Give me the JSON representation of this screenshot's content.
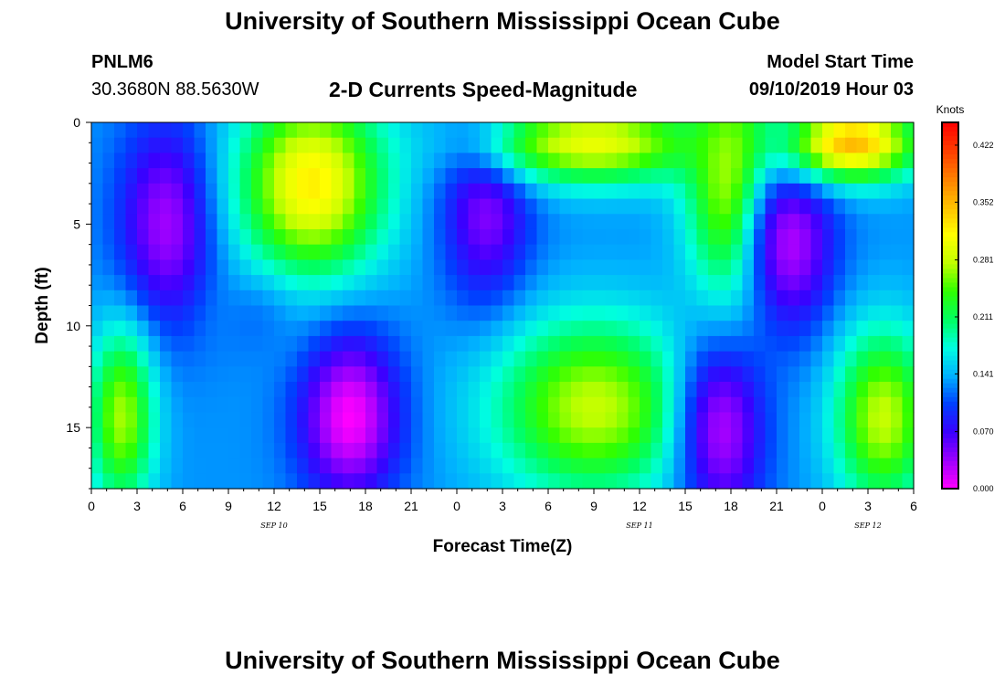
{
  "header": {
    "title": "University of Southern Mississippi Ocean Cube",
    "station_id": "PNLM6",
    "coords": "30.3680N 88.5630W",
    "subtitle": "2-D Currents Speed-Magnitude",
    "model_label": "Model Start Time",
    "model_time": "09/10/2019 Hour 03"
  },
  "footer": {
    "title": "University of Southern Mississippi Ocean Cube"
  },
  "chart_data": {
    "type": "heatmap",
    "title": "2-D Currents Speed-Magnitude",
    "xlabel": "Forecast Time(Z)",
    "ylabel": "Depth (ft)",
    "x_hours": [
      0,
      3,
      6,
      9,
      12,
      15,
      18,
      21,
      24,
      27,
      30,
      33,
      36,
      39,
      42,
      45,
      48,
      51,
      54
    ],
    "x_tick_labels": [
      "0",
      "3",
      "6",
      "9",
      "12",
      "15",
      "18",
      "21",
      "0",
      "3",
      "6",
      "9",
      "12",
      "15",
      "18",
      "21",
      "0",
      "3",
      "6"
    ],
    "date_labels": [
      {
        "text": "SEP 10",
        "hour": 12
      },
      {
        "text": "SEP 11",
        "hour": 36
      },
      {
        "text": "SEP 12",
        "hour": 51
      }
    ],
    "y_ticks": [
      0,
      5,
      10,
      15
    ],
    "ylim": [
      0,
      18
    ],
    "colorbar": {
      "label": "Knots",
      "ticks": [
        "0.000",
        "0.070",
        "0.141",
        "0.211",
        "0.281",
        "0.352",
        "0.422"
      ],
      "range": [
        0,
        0.45
      ]
    },
    "colormap": [
      "#ff00ff",
      "#9c00ff",
      "#3a00ff",
      "#0040ff",
      "#00b0ff",
      "#00ffe0",
      "#00ff60",
      "#30ff00",
      "#c0ff00",
      "#ffff00",
      "#ffc000",
      "#ff8000",
      "#ff3c00",
      "#ff0000"
    ],
    "depth_bands": [
      "grad",
      "grad",
      "grad",
      "grad",
      "grad",
      "grad",
      "grad",
      "grad",
      "grad",
      "grad",
      "grad",
      "grad",
      "grad",
      "grad",
      "grad",
      "grad",
      "grad",
      "grad"
    ],
    "hotspots": [
      {
        "t": 5,
        "d": 5,
        "v": 0.03,
        "st": 2.2,
        "sd": 3.5
      },
      {
        "t": 14.5,
        "d": 3,
        "v": 0.32,
        "st": 3.3,
        "sd": 3.2
      },
      {
        "t": 17,
        "d": 14.5,
        "v": 0.0,
        "st": 2.3,
        "sd": 2.8
      },
      {
        "t": 26,
        "d": 4,
        "v": 0.04,
        "st": 2.0,
        "sd": 3.5
      },
      {
        "t": 33,
        "d": 1,
        "v": 0.3,
        "st": 5.0,
        "sd": 1.4
      },
      {
        "t": 33,
        "d": 14,
        "v": 0.28,
        "st": 4.5,
        "sd": 3.0
      },
      {
        "t": 41.5,
        "d": 15,
        "v": 0.03,
        "st": 2.0,
        "sd": 3.5
      },
      {
        "t": 42,
        "d": 3,
        "v": 0.28,
        "st": 2.0,
        "sd": 4.0
      },
      {
        "t": 46,
        "d": 6,
        "v": 0.03,
        "st": 2.0,
        "sd": 3.0
      },
      {
        "t": 50,
        "d": 1,
        "v": 0.35,
        "st": 3.0,
        "sd": 1.3
      },
      {
        "t": 52,
        "d": 14.5,
        "v": 0.28,
        "st": 2.2,
        "sd": 3.0
      },
      {
        "t": 2,
        "d": 14.5,
        "v": 0.27,
        "st": 1.5,
        "sd": 3.0
      },
      {
        "t": 10.5,
        "d": 10,
        "v": 0.12,
        "st": 2.0,
        "sd": 1.5
      }
    ],
    "base_value": 0.13
  }
}
